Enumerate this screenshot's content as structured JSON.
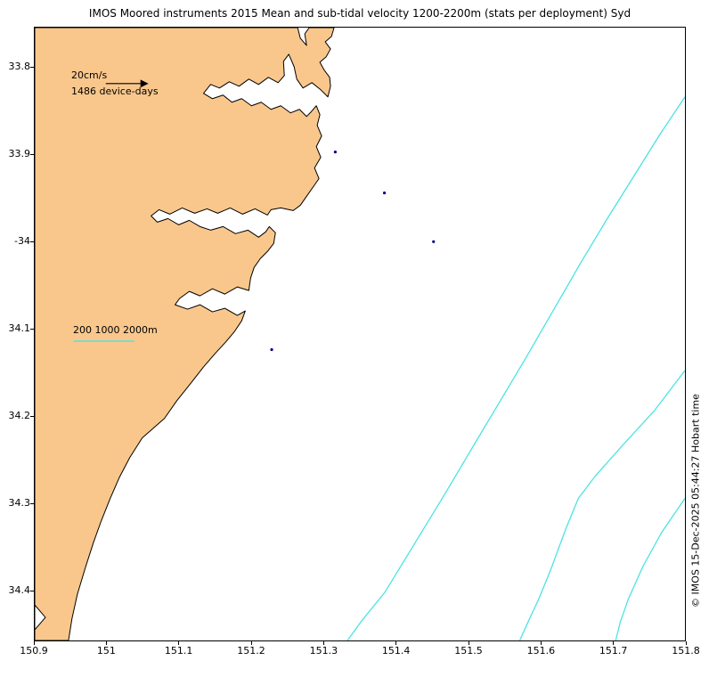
{
  "title": "IMOS Moored instruments 2015 Mean and sub-tidal velocity 1200-2200m (stats per deployment) Syd",
  "annotations": {
    "scale_label": "20cm/s",
    "device_days_label": "1486 device-days",
    "depth_legend_label": "200 1000 2000m",
    "credit": "© IMOS 15-Dec-2025 05:44:27 Hobart time"
  },
  "axes": {
    "x_ticks": [
      "150.9",
      "151",
      "151.1",
      "151.2",
      "151.3",
      "151.4",
      "151.5",
      "151.6",
      "151.7",
      "151.8"
    ],
    "y_ticks": [
      "33.8",
      "33.9",
      "-34",
      "34.1",
      "34.2",
      "34.3",
      "34.4"
    ],
    "x_range": [
      150.9,
      151.8
    ],
    "y_range": [
      33.75,
      34.46
    ]
  },
  "map_data": {
    "type": "map",
    "depth_contours_m": [
      200,
      1000,
      2000
    ],
    "stations": [
      {
        "lon": 151.316,
        "lat": -33.897
      },
      {
        "lon": 151.384,
        "lat": -33.944
      },
      {
        "lon": 151.452,
        "lat": -34.0
      },
      {
        "lon": 151.228,
        "lat": -34.124
      }
    ],
    "velocity_scale_cm_s": 20,
    "total_device_days": 1486
  },
  "colors": {
    "land": "#f9c78c",
    "coastline": "#000000",
    "depth_contour": "#4ce3e3",
    "station_marker": "#00008b",
    "background": "#ffffff"
  }
}
